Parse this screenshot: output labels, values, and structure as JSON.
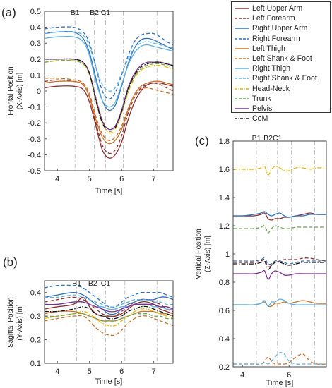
{
  "legend": [
    {
      "label": "Left Upper Arm",
      "color": "#8b2e2e",
      "dash": "solid"
    },
    {
      "label": "Left Forearm",
      "color": "#8b2e2e",
      "dash": "dashed"
    },
    {
      "label": "Right Upper Arm",
      "color": "#2e6fbf",
      "dash": "solid"
    },
    {
      "label": "Right Forearm",
      "color": "#2e6fbf",
      "dash": "dashed"
    },
    {
      "label": "Left Thigh",
      "color": "#c8702a",
      "dash": "solid"
    },
    {
      "label": "Left Shank & Foot",
      "color": "#c8702a",
      "dash": "dashed"
    },
    {
      "label": "Right Thigh",
      "color": "#5fb0e0",
      "dash": "solid"
    },
    {
      "label": "Right Shank & Foot",
      "color": "#5fb0e0",
      "dash": "dashed"
    },
    {
      "label": "Head-Neck",
      "color": "#e6b800",
      "dash": "dashdot"
    },
    {
      "label": "Trunk",
      "color": "#6aa84f",
      "dash": "dashed"
    },
    {
      "label": "Pelvis",
      "color": "#7b2d8e",
      "dash": "solid"
    },
    {
      "label": "CoM",
      "color": "#111111",
      "dash": "dashdot"
    }
  ],
  "chart_data": [
    {
      "panel_label": "(a)",
      "type": "line",
      "xlabel": "Time [s]",
      "ylabel_lines": [
        "Frontal Position",
        "(X-Axis) [m]"
      ],
      "xlim": [
        3.6,
        7.6
      ],
      "ylim": [
        -0.5,
        0.5
      ],
      "xticks": [
        4,
        5,
        6,
        7
      ],
      "yticks": [
        -0.5,
        -0.4,
        -0.3,
        -0.2,
        -0.1,
        0,
        0.1,
        0.2,
        0.3,
        0.4,
        0.5
      ],
      "ytick_labels": [
        "-0.5",
        "-0.4",
        "-0.3",
        "-0.2",
        "-0.1",
        "0",
        "0.1",
        "0.2",
        "0.3",
        "0.4",
        "0.5"
      ],
      "events": [
        {
          "label": "B1",
          "x": 4.55
        },
        {
          "label": "B2",
          "x": 5.15
        },
        {
          "label": "C1",
          "x": 5.5
        },
        {
          "label": "",
          "x": 6.05
        },
        {
          "label": "",
          "x": 7.1
        }
      ],
      "x": [
        3.6,
        4.0,
        4.5,
        4.8,
        5.0,
        5.2,
        5.4,
        5.6,
        5.8,
        6.0,
        6.2,
        6.4,
        6.6,
        6.8,
        7.0,
        7.2,
        7.4,
        7.6
      ],
      "series": [
        {
          "name": "Left Upper Arm",
          "values": [
            0.02,
            0.03,
            0.03,
            0.01,
            -0.07,
            -0.22,
            -0.37,
            -0.42,
            -0.4,
            -0.32,
            -0.18,
            -0.07,
            0.0,
            0.04,
            0.05,
            0.05,
            0.04,
            0.03
          ]
        },
        {
          "name": "Left Forearm",
          "values": [
            0.06,
            0.07,
            0.06,
            0.04,
            -0.04,
            -0.2,
            -0.34,
            -0.39,
            -0.37,
            -0.28,
            -0.14,
            -0.04,
            0.02,
            0.04,
            0.05,
            0.04,
            0.02,
            0.0
          ]
        },
        {
          "name": "Right Upper Arm",
          "values": [
            0.36,
            0.37,
            0.37,
            0.33,
            0.24,
            0.08,
            -0.06,
            -0.12,
            -0.09,
            0.03,
            0.17,
            0.27,
            0.32,
            0.33,
            0.32,
            0.3,
            0.28,
            0.26
          ]
        },
        {
          "name": "Right Forearm",
          "values": [
            0.39,
            0.4,
            0.4,
            0.37,
            0.3,
            0.15,
            0.0,
            -0.05,
            -0.01,
            0.1,
            0.22,
            0.31,
            0.35,
            0.36,
            0.36,
            0.34,
            0.31,
            0.29
          ]
        },
        {
          "name": "Left Thigh",
          "values": [
            0.05,
            0.06,
            0.06,
            0.04,
            -0.04,
            -0.18,
            -0.29,
            -0.33,
            -0.31,
            -0.24,
            -0.12,
            -0.02,
            0.03,
            0.05,
            0.06,
            0.06,
            0.05,
            0.04
          ]
        },
        {
          "name": "Left Shank & Foot",
          "values": [
            0.08,
            0.08,
            0.07,
            0.05,
            -0.02,
            -0.16,
            -0.27,
            -0.31,
            -0.29,
            -0.22,
            -0.11,
            -0.03,
            0.01,
            0.02,
            0.01,
            0.0,
            -0.01,
            -0.02
          ]
        },
        {
          "name": "Right Thigh",
          "values": [
            0.33,
            0.34,
            0.34,
            0.31,
            0.22,
            0.06,
            -0.06,
            -0.1,
            -0.07,
            0.04,
            0.16,
            0.24,
            0.28,
            0.29,
            0.28,
            0.27,
            0.26,
            0.25
          ]
        },
        {
          "name": "Right Shank & Foot",
          "values": [
            0.36,
            0.37,
            0.37,
            0.35,
            0.28,
            0.15,
            0.04,
            0.0,
            0.02,
            0.11,
            0.2,
            0.27,
            0.3,
            0.31,
            0.3,
            0.29,
            0.28,
            0.27
          ]
        },
        {
          "name": "Head-Neck",
          "values": [
            0.18,
            0.19,
            0.19,
            0.17,
            0.1,
            -0.06,
            -0.2,
            -0.26,
            -0.24,
            -0.14,
            -0.01,
            0.08,
            0.13,
            0.15,
            0.16,
            0.16,
            0.15,
            0.14
          ]
        },
        {
          "name": "Trunk",
          "values": [
            0.18,
            0.19,
            0.19,
            0.17,
            0.11,
            -0.04,
            -0.18,
            -0.24,
            -0.22,
            -0.13,
            0.0,
            0.09,
            0.14,
            0.16,
            0.17,
            0.17,
            0.16,
            0.15
          ]
        },
        {
          "name": "Pelvis",
          "values": [
            0.2,
            0.2,
            0.2,
            0.18,
            0.11,
            -0.05,
            -0.19,
            -0.24,
            -0.22,
            -0.12,
            0.02,
            0.11,
            0.16,
            0.18,
            0.18,
            0.18,
            0.17,
            0.16
          ]
        },
        {
          "name": "CoM",
          "values": [
            0.2,
            0.2,
            0.2,
            0.18,
            0.11,
            -0.06,
            -0.2,
            -0.25,
            -0.23,
            -0.13,
            0.01,
            0.1,
            0.15,
            0.17,
            0.18,
            0.18,
            0.17,
            0.16
          ]
        }
      ]
    },
    {
      "panel_label": "(b)",
      "type": "line",
      "xlabel": "Time [s]",
      "ylabel_lines": [
        "Sagittal Position",
        "(Y-Axis) [m]"
      ],
      "xlim": [
        3.6,
        7.6
      ],
      "ylim": [
        0.1,
        0.45
      ],
      "xticks": [
        4,
        5,
        6,
        7
      ],
      "yticks": [
        0.1,
        0.2,
        0.3,
        0.4
      ],
      "ytick_labels": [
        "0.1",
        "0.2",
        "0.3",
        "0.4"
      ],
      "events": [
        {
          "label": "B1",
          "x": 4.6
        },
        {
          "label": "B2",
          "x": 5.1
        },
        {
          "label": "C1",
          "x": 5.5
        },
        {
          "label": "",
          "x": 6.1
        },
        {
          "label": "",
          "x": 7.1
        }
      ],
      "x": [
        3.6,
        4.0,
        4.5,
        4.8,
        5.0,
        5.2,
        5.4,
        5.6,
        5.8,
        6.0,
        6.2,
        6.4,
        6.6,
        6.8,
        7.0,
        7.2,
        7.4,
        7.6
      ],
      "series": [
        {
          "name": "Left Upper Arm",
          "values": [
            0.33,
            0.34,
            0.35,
            0.38,
            0.34,
            0.31,
            0.3,
            0.3,
            0.3,
            0.31,
            0.33,
            0.35,
            0.36,
            0.36,
            0.35,
            0.33,
            0.32,
            0.31
          ]
        },
        {
          "name": "Left Forearm",
          "values": [
            0.36,
            0.37,
            0.38,
            0.37,
            0.35,
            0.33,
            0.31,
            0.3,
            0.3,
            0.32,
            0.34,
            0.36,
            0.37,
            0.37,
            0.36,
            0.35,
            0.33,
            0.32
          ]
        },
        {
          "name": "Right Upper Arm",
          "values": [
            0.38,
            0.39,
            0.4,
            0.39,
            0.37,
            0.35,
            0.33,
            0.31,
            0.31,
            0.33,
            0.35,
            0.36,
            0.37,
            0.37,
            0.37,
            0.38,
            0.38,
            0.37
          ]
        },
        {
          "name": "Right Forearm",
          "values": [
            0.42,
            0.43,
            0.43,
            0.42,
            0.4,
            0.38,
            0.36,
            0.34,
            0.34,
            0.36,
            0.38,
            0.39,
            0.4,
            0.4,
            0.4,
            0.4,
            0.39,
            0.38
          ]
        },
        {
          "name": "Left Thigh",
          "values": [
            0.31,
            0.32,
            0.32,
            0.31,
            0.3,
            0.29,
            0.28,
            0.28,
            0.28,
            0.29,
            0.3,
            0.31,
            0.32,
            0.32,
            0.32,
            0.31,
            0.31,
            0.3
          ]
        },
        {
          "name": "Left Shank & Foot",
          "values": [
            0.28,
            0.29,
            0.3,
            0.3,
            0.28,
            0.25,
            0.23,
            0.22,
            0.22,
            0.24,
            0.27,
            0.29,
            0.3,
            0.3,
            0.29,
            0.28,
            0.27,
            0.26
          ]
        },
        {
          "name": "Right Thigh",
          "values": [
            0.35,
            0.35,
            0.36,
            0.36,
            0.35,
            0.34,
            0.34,
            0.33,
            0.33,
            0.34,
            0.34,
            0.35,
            0.35,
            0.35,
            0.34,
            0.34,
            0.33,
            0.33
          ]
        },
        {
          "name": "Right Shank & Foot",
          "values": [
            0.38,
            0.38,
            0.39,
            0.38,
            0.37,
            0.36,
            0.35,
            0.34,
            0.34,
            0.35,
            0.36,
            0.37,
            0.37,
            0.37,
            0.36,
            0.36,
            0.35,
            0.35
          ]
        },
        {
          "name": "Head-Neck",
          "values": [
            0.29,
            0.3,
            0.31,
            0.32,
            0.31,
            0.29,
            0.27,
            0.26,
            0.26,
            0.28,
            0.3,
            0.32,
            0.33,
            0.33,
            0.32,
            0.31,
            0.3,
            0.29
          ]
        },
        {
          "name": "Trunk",
          "values": [
            0.3,
            0.3,
            0.31,
            0.31,
            0.3,
            0.29,
            0.28,
            0.28,
            0.28,
            0.29,
            0.3,
            0.31,
            0.31,
            0.31,
            0.3,
            0.3,
            0.29,
            0.29
          ]
        },
        {
          "name": "Pelvis",
          "values": [
            0.35,
            0.35,
            0.36,
            0.36,
            0.35,
            0.34,
            0.33,
            0.32,
            0.32,
            0.33,
            0.34,
            0.35,
            0.35,
            0.35,
            0.35,
            0.34,
            0.34,
            0.33
          ]
        },
        {
          "name": "CoM",
          "values": [
            0.32,
            0.32,
            0.33,
            0.34,
            0.33,
            0.31,
            0.3,
            0.29,
            0.29,
            0.3,
            0.32,
            0.33,
            0.34,
            0.34,
            0.33,
            0.32,
            0.31,
            0.3
          ]
        }
      ]
    },
    {
      "panel_label": "(c)",
      "type": "line",
      "xlabel": "Time [s]",
      "ylabel_lines": [
        "Vertical Position",
        "(Z-Axis) [m]"
      ],
      "xlim": [
        3.6,
        7.6
      ],
      "ylim": [
        0.2,
        1.8
      ],
      "xticks": [
        4,
        6
      ],
      "yticks": [
        0.2,
        0.4,
        0.6,
        0.8,
        1.0,
        1.2,
        1.4,
        1.6,
        1.8
      ],
      "ytick_labels": [
        "0.2",
        "0.4",
        "0.6",
        "0.8",
        "1",
        "1.2",
        "1.4",
        "1.6",
        "1.8"
      ],
      "events": [
        {
          "label": "B1",
          "x": 4.6
        },
        {
          "label": "B2",
          "x": 5.1
        },
        {
          "label": "C1",
          "x": 5.5
        },
        {
          "label": "",
          "x": 6.1
        },
        {
          "label": "",
          "x": 7.1
        }
      ],
      "x": [
        3.6,
        4.0,
        4.5,
        4.8,
        4.95,
        5.1,
        5.25,
        5.4,
        5.6,
        5.8,
        6.0,
        6.3,
        6.6,
        6.9,
        7.2,
        7.6
      ],
      "series": [
        {
          "name": "Left Upper Arm",
          "values": [
            1.27,
            1.27,
            1.27,
            1.28,
            1.29,
            1.25,
            1.24,
            1.25,
            1.25,
            1.26,
            1.26,
            1.27,
            1.28,
            1.29,
            1.28,
            1.28
          ]
        },
        {
          "name": "Left Forearm",
          "values": [
            0.94,
            0.94,
            0.94,
            0.95,
            0.96,
            0.91,
            0.92,
            0.94,
            0.95,
            0.96,
            0.96,
            0.96,
            0.97,
            0.97,
            0.96,
            0.95
          ]
        },
        {
          "name": "Right Upper Arm",
          "values": [
            1.27,
            1.27,
            1.28,
            1.29,
            1.3,
            1.28,
            1.27,
            1.28,
            1.29,
            1.27,
            1.26,
            1.27,
            1.27,
            1.28,
            1.28,
            1.28
          ]
        },
        {
          "name": "Right Forearm",
          "values": [
            0.95,
            0.95,
            0.95,
            0.96,
            0.97,
            0.93,
            0.93,
            0.95,
            0.95,
            0.94,
            0.93,
            0.94,
            0.95,
            0.95,
            0.95,
            0.95
          ]
        },
        {
          "name": "Left Thigh",
          "values": [
            0.64,
            0.64,
            0.64,
            0.65,
            0.66,
            0.63,
            0.63,
            0.65,
            0.65,
            0.66,
            0.65,
            0.66,
            0.67,
            0.66,
            0.65,
            0.65
          ]
        },
        {
          "name": "Left Shank & Foot",
          "values": [
            0.22,
            0.22,
            0.22,
            0.22,
            0.24,
            0.27,
            0.24,
            0.22,
            0.22,
            0.22,
            0.23,
            0.27,
            0.29,
            0.24,
            0.22,
            0.22
          ]
        },
        {
          "name": "Right Thigh",
          "values": [
            0.64,
            0.64,
            0.64,
            0.65,
            0.67,
            0.63,
            0.66,
            0.66,
            0.68,
            0.67,
            0.65,
            0.64,
            0.64,
            0.64,
            0.64,
            0.64
          ]
        },
        {
          "name": "Right Shank & Foot",
          "values": [
            0.22,
            0.22,
            0.22,
            0.22,
            0.23,
            0.22,
            0.24,
            0.27,
            0.3,
            0.29,
            0.24,
            0.22,
            0.22,
            0.22,
            0.22,
            0.22
          ]
        },
        {
          "name": "Head-Neck",
          "values": [
            1.6,
            1.6,
            1.6,
            1.61,
            1.62,
            1.56,
            1.6,
            1.62,
            1.61,
            1.59,
            1.59,
            1.61,
            1.61,
            1.6,
            1.61,
            1.61
          ]
        },
        {
          "name": "Trunk",
          "values": [
            1.18,
            1.18,
            1.18,
            1.19,
            1.2,
            1.15,
            1.18,
            1.2,
            1.19,
            1.18,
            1.18,
            1.19,
            1.19,
            1.19,
            1.19,
            1.19
          ]
        },
        {
          "name": "Pelvis",
          "values": [
            0.86,
            0.86,
            0.86,
            0.87,
            0.88,
            0.82,
            0.86,
            0.88,
            0.87,
            0.85,
            0.85,
            0.86,
            0.86,
            0.86,
            0.86,
            0.86
          ]
        },
        {
          "name": "CoM",
          "values": [
            0.93,
            0.93,
            0.93,
            0.94,
            0.95,
            0.89,
            0.92,
            0.94,
            0.94,
            0.93,
            0.92,
            0.93,
            0.94,
            0.94,
            0.94,
            0.94
          ]
        }
      ]
    }
  ]
}
